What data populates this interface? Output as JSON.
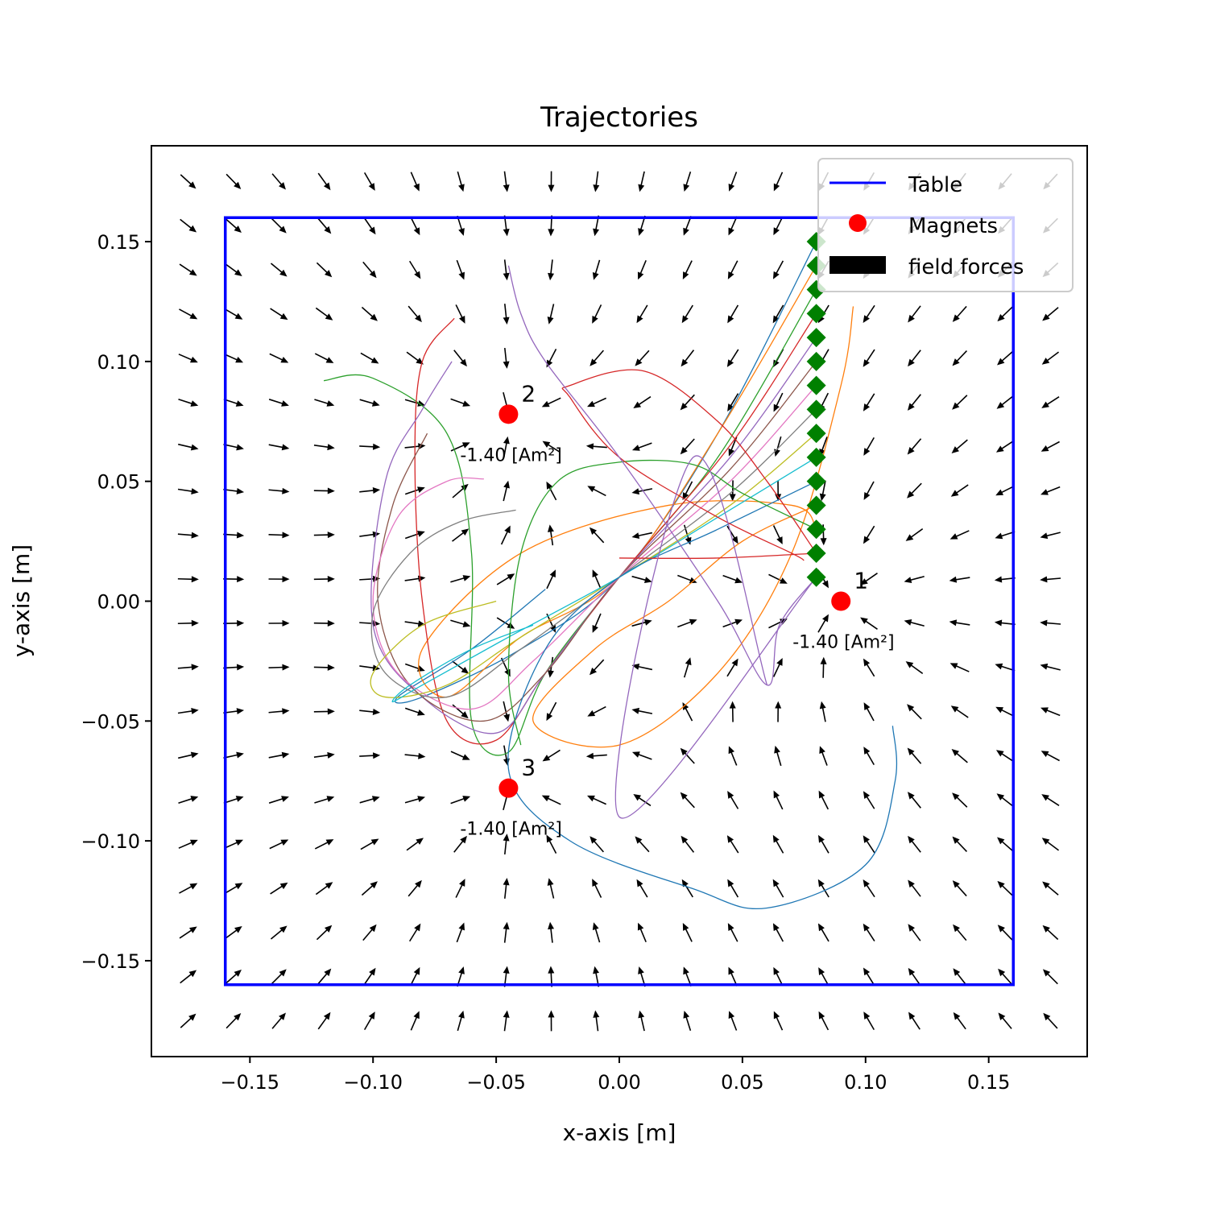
{
  "chart_data": {
    "type": "line",
    "title": "Trajectories",
    "xlabel": "x-axis [m]",
    "ylabel": "y-axis [m]",
    "xlim": [
      -0.19,
      0.19
    ],
    "ylim": [
      -0.19,
      0.19
    ],
    "xticks": [
      -0.15,
      -0.1,
      -0.05,
      0.0,
      0.05,
      0.1,
      0.15
    ],
    "yticks": [
      -0.15,
      -0.1,
      -0.05,
      0.0,
      0.05,
      0.1,
      0.15
    ],
    "xtick_labels": [
      "−0.15",
      "−0.10",
      "−0.05",
      "0.00",
      "0.05",
      "0.10",
      "0.15"
    ],
    "ytick_labels": [
      "−0.15",
      "−0.10",
      "−0.05",
      "0.00",
      "0.05",
      "0.10",
      "0.15"
    ],
    "grid": false,
    "legend": {
      "placement": "top-right",
      "entries": [
        "Table",
        "Magnets",
        "field forces"
      ]
    },
    "table": {
      "name": "Table",
      "color": "#0000ff",
      "corners": [
        [
          -0.16,
          -0.16
        ],
        [
          0.16,
          -0.16
        ],
        [
          0.16,
          0.16
        ],
        [
          -0.16,
          0.16
        ]
      ]
    },
    "magnets": [
      {
        "id": "1",
        "x": 0.09,
        "y": 0.0,
        "moment": "-1.40 [Am²]"
      },
      {
        "id": "2",
        "x": -0.045,
        "y": 0.078,
        "moment": "-1.40 [Am²]"
      },
      {
        "id": "3",
        "x": -0.045,
        "y": -0.078,
        "moment": "-1.40 [Am²]"
      }
    ],
    "magnet_color": "#ff0000",
    "quiver": {
      "name": "field forces",
      "x_range": [
        -0.175,
        0.175
      ],
      "y_range": [
        -0.175,
        0.175
      ],
      "n": 20,
      "color": "#000000"
    },
    "start_points": {
      "x": 0.08,
      "y": [
        0.01,
        0.02,
        0.03,
        0.04,
        0.05,
        0.06,
        0.07,
        0.08,
        0.09,
        0.1,
        0.11,
        0.12,
        0.13,
        0.14,
        0.15
      ],
      "color": "#008000",
      "marker": "diamond"
    },
    "series": [
      {
        "color": "#1f77b4",
        "points": [
          [
            0.08,
            0.15
          ],
          [
            0.04,
            0.07
          ],
          [
            0.0,
            0.01
          ],
          [
            -0.04,
            -0.02
          ],
          [
            -0.08,
            -0.04
          ],
          [
            -0.09,
            -0.04
          ],
          [
            -0.06,
            -0.02
          ],
          [
            -0.03,
            0.005
          ]
        ]
      },
      {
        "color": "#ff7f0e",
        "points": [
          [
            0.08,
            0.14
          ],
          [
            0.04,
            0.07
          ],
          [
            0.0,
            0.01
          ],
          [
            -0.04,
            -0.015
          ],
          [
            -0.07,
            -0.04
          ],
          [
            -0.08,
            -0.02
          ],
          [
            -0.04,
            0.02
          ],
          [
            0.02,
            0.04
          ],
          [
            0.07,
            0.04
          ],
          [
            0.08,
            0.03
          ]
        ]
      },
      {
        "color": "#2ca02c",
        "points": [
          [
            0.08,
            0.13
          ],
          [
            0.04,
            0.06
          ],
          [
            0.0,
            0.01
          ],
          [
            -0.03,
            -0.03
          ],
          [
            -0.045,
            -0.063
          ],
          [
            -0.06,
            -0.05
          ],
          [
            -0.06,
            0.02
          ],
          [
            -0.07,
            0.07
          ],
          [
            -0.1,
            0.093
          ],
          [
            -0.12,
            0.092
          ]
        ]
      },
      {
        "color": "#d62728",
        "points": [
          [
            0.08,
            0.12
          ],
          [
            0.045,
            0.065
          ],
          [
            0.0,
            0.01
          ],
          [
            -0.03,
            -0.03
          ],
          [
            -0.05,
            -0.058
          ],
          [
            -0.07,
            -0.05
          ],
          [
            -0.08,
            0.0
          ],
          [
            -0.083,
            0.06
          ],
          [
            -0.08,
            0.1
          ],
          [
            -0.067,
            0.118
          ]
        ]
      },
      {
        "color": "#9467bd",
        "points": [
          [
            0.08,
            0.11
          ],
          [
            0.045,
            0.06
          ],
          [
            0.0,
            0.01
          ],
          [
            -0.03,
            -0.03
          ],
          [
            -0.05,
            -0.055
          ],
          [
            -0.08,
            -0.04
          ],
          [
            -0.1,
            -0.01
          ],
          [
            -0.095,
            0.05
          ],
          [
            -0.08,
            0.08
          ],
          [
            -0.068,
            0.1
          ]
        ]
      },
      {
        "color": "#8c564b",
        "points": [
          [
            0.08,
            0.1
          ],
          [
            0.045,
            0.055
          ],
          [
            0.0,
            0.01
          ],
          [
            -0.03,
            -0.03
          ],
          [
            -0.055,
            -0.05
          ],
          [
            -0.085,
            -0.035
          ],
          [
            -0.098,
            0.0
          ],
          [
            -0.092,
            0.04
          ],
          [
            -0.078,
            0.07
          ]
        ]
      },
      {
        "color": "#e377c2",
        "points": [
          [
            0.08,
            0.09
          ],
          [
            0.045,
            0.05
          ],
          [
            0.0,
            0.01
          ],
          [
            -0.035,
            -0.025
          ],
          [
            -0.06,
            -0.045
          ],
          [
            -0.09,
            -0.03
          ],
          [
            -0.1,
            0.0
          ],
          [
            -0.09,
            0.035
          ],
          [
            -0.07,
            0.05
          ],
          [
            -0.055,
            0.051
          ]
        ]
      },
      {
        "color": "#7f7f7f",
        "points": [
          [
            0.08,
            0.08
          ],
          [
            0.045,
            0.045
          ],
          [
            0.0,
            0.01
          ],
          [
            -0.04,
            -0.02
          ],
          [
            -0.07,
            -0.04
          ],
          [
            -0.095,
            -0.03
          ],
          [
            -0.1,
            -0.005
          ],
          [
            -0.085,
            0.02
          ],
          [
            -0.065,
            0.033
          ],
          [
            -0.042,
            0.038
          ]
        ]
      },
      {
        "color": "#bcbd22",
        "points": [
          [
            0.08,
            0.07
          ],
          [
            0.045,
            0.04
          ],
          [
            0.0,
            0.01
          ],
          [
            -0.04,
            -0.015
          ],
          [
            -0.07,
            -0.035
          ],
          [
            -0.095,
            -0.04
          ],
          [
            -0.1,
            -0.03
          ],
          [
            -0.08,
            -0.01
          ],
          [
            -0.05,
            0.0
          ]
        ]
      },
      {
        "color": "#17becf",
        "points": [
          [
            0.08,
            0.06
          ],
          [
            0.04,
            0.035
          ],
          [
            0.0,
            0.01
          ],
          [
            -0.045,
            -0.015
          ],
          [
            -0.08,
            -0.035
          ],
          [
            -0.092,
            -0.042
          ],
          [
            -0.085,
            -0.035
          ],
          [
            -0.06,
            -0.02
          ],
          [
            -0.035,
            -0.01
          ]
        ]
      },
      {
        "color": "#1f77b4",
        "points": [
          [
            0.08,
            0.05
          ],
          [
            0.04,
            0.03
          ],
          [
            0.0,
            0.01
          ],
          [
            -0.03,
            -0.02
          ],
          [
            -0.045,
            -0.07
          ],
          [
            -0.02,
            -0.1
          ],
          [
            0.03,
            -0.12
          ],
          [
            0.06,
            -0.128
          ],
          [
            0.1,
            -0.11
          ],
          [
            0.112,
            -0.075
          ],
          [
            0.111,
            -0.052
          ]
        ]
      },
      {
        "color": "#ff7f0e",
        "points": [
          [
            0.08,
            0.04
          ],
          [
            0.05,
            0.025
          ],
          [
            0.02,
            0.0
          ],
          [
            -0.01,
            -0.02
          ],
          [
            -0.035,
            -0.05
          ],
          [
            0.0,
            -0.06
          ],
          [
            0.04,
            -0.03
          ],
          [
            0.07,
            0.02
          ],
          [
            0.09,
            0.09
          ],
          [
            0.095,
            0.123
          ]
        ]
      },
      {
        "color": "#2ca02c",
        "points": [
          [
            0.08,
            0.03
          ],
          [
            0.05,
            0.045
          ],
          [
            0.03,
            0.057
          ],
          [
            0.0,
            0.058
          ],
          [
            -0.025,
            0.05
          ],
          [
            -0.04,
            0.02
          ],
          [
            -0.045,
            -0.03
          ],
          [
            -0.04,
            -0.06
          ]
        ]
      },
      {
        "color": "#d62728",
        "points": [
          [
            0.08,
            0.02
          ],
          [
            0.06,
            0.05
          ],
          [
            0.04,
            0.075
          ],
          [
            0.01,
            0.096
          ],
          [
            -0.02,
            0.09
          ],
          [
            -0.02,
            0.085
          ],
          [
            0.0,
            0.06
          ],
          [
            0.04,
            0.035
          ],
          [
            0.07,
            0.02
          ],
          [
            0.075,
            0.017
          ]
        ]
      },
      {
        "color": "#9467bd",
        "points": [
          [
            0.08,
            0.01
          ],
          [
            0.065,
            -0.01
          ],
          [
            0.06,
            -0.035
          ],
          [
            0.04,
            0.0
          ],
          [
            0.0,
            0.06
          ],
          [
            -0.03,
            0.1
          ],
          [
            -0.04,
            0.12
          ],
          [
            -0.045,
            0.14
          ]
        ]
      },
      {
        "color": "#d62728",
        "points": [
          [
            0.08,
            0.02
          ],
          [
            0.04,
            0.018
          ],
          [
            0.0,
            0.018
          ]
        ]
      },
      {
        "color": "#9467bd",
        "points": [
          [
            0.08,
            0.01
          ],
          [
            0.0,
            -0.09
          ],
          [
            0.03,
            0.06
          ],
          [
            0.06,
            -0.035
          ]
        ]
      }
    ]
  }
}
